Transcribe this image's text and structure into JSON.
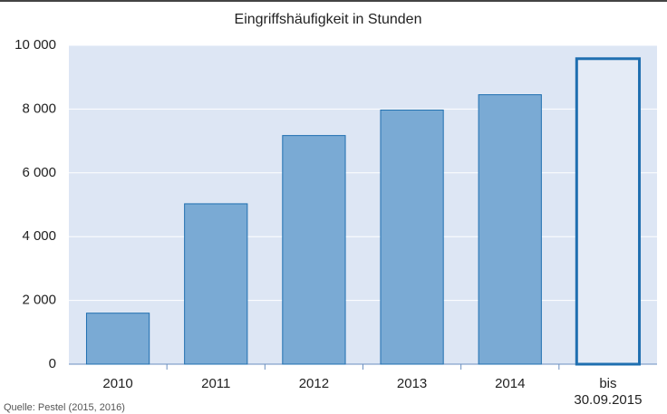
{
  "chart_data": {
    "type": "bar",
    "title": "Eingriffshäufigkeit in Stunden",
    "categories": [
      "2010",
      "2011",
      "2012",
      "2013",
      "2014",
      "bis 30.09.2015"
    ],
    "values": [
      1600,
      5030,
      7170,
      7970,
      8450,
      9580
    ],
    "color": "#7aaad4",
    "edge_color": "#1f6fb0",
    "fills": [
      "#7aaad4",
      "#7aaad4",
      "#7aaad4",
      "#7aaad4",
      "#7aaad4",
      "#e4ebf6"
    ],
    "ylim": [
      0,
      10000
    ],
    "yticks": [
      0,
      {
        "value": 2000,
        "label": "2 000"
      },
      {
        "value": 4000,
        "label": "4 000"
      },
      {
        "value": 6000,
        "label": "6 000"
      },
      {
        "value": 8000,
        "label": "8 000"
      },
      {
        "value": 10000,
        "label": "10 000"
      }
    ],
    "grid": true,
    "source": "Quelle: Pestel (2015, 2016)"
  }
}
